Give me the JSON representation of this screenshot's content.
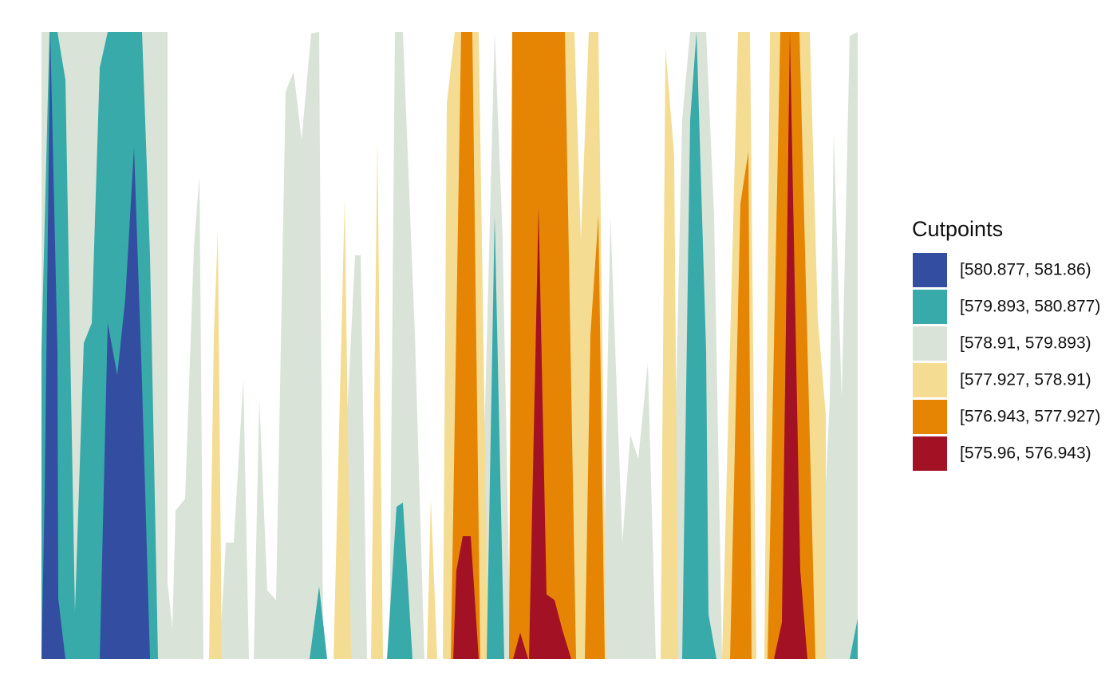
{
  "chart_data": {
    "type": "contour",
    "legend_title": "Cutpoints",
    "levels": [
      {
        "label": "[580.877, 581.86)",
        "color": "#334ea0"
      },
      {
        "label": "[579.893, 580.877)",
        "color": "#37aaa9"
      },
      {
        "label": "[578.91, 579.893)",
        "color": "#d9e3d8"
      },
      {
        "label": "[577.927, 578.91)",
        "color": "#f5dc93"
      },
      {
        "label": "[576.943, 577.927)",
        "color": "#e68503"
      },
      {
        "label": "[575.96, 576.943)",
        "color": "#a31125"
      }
    ]
  }
}
